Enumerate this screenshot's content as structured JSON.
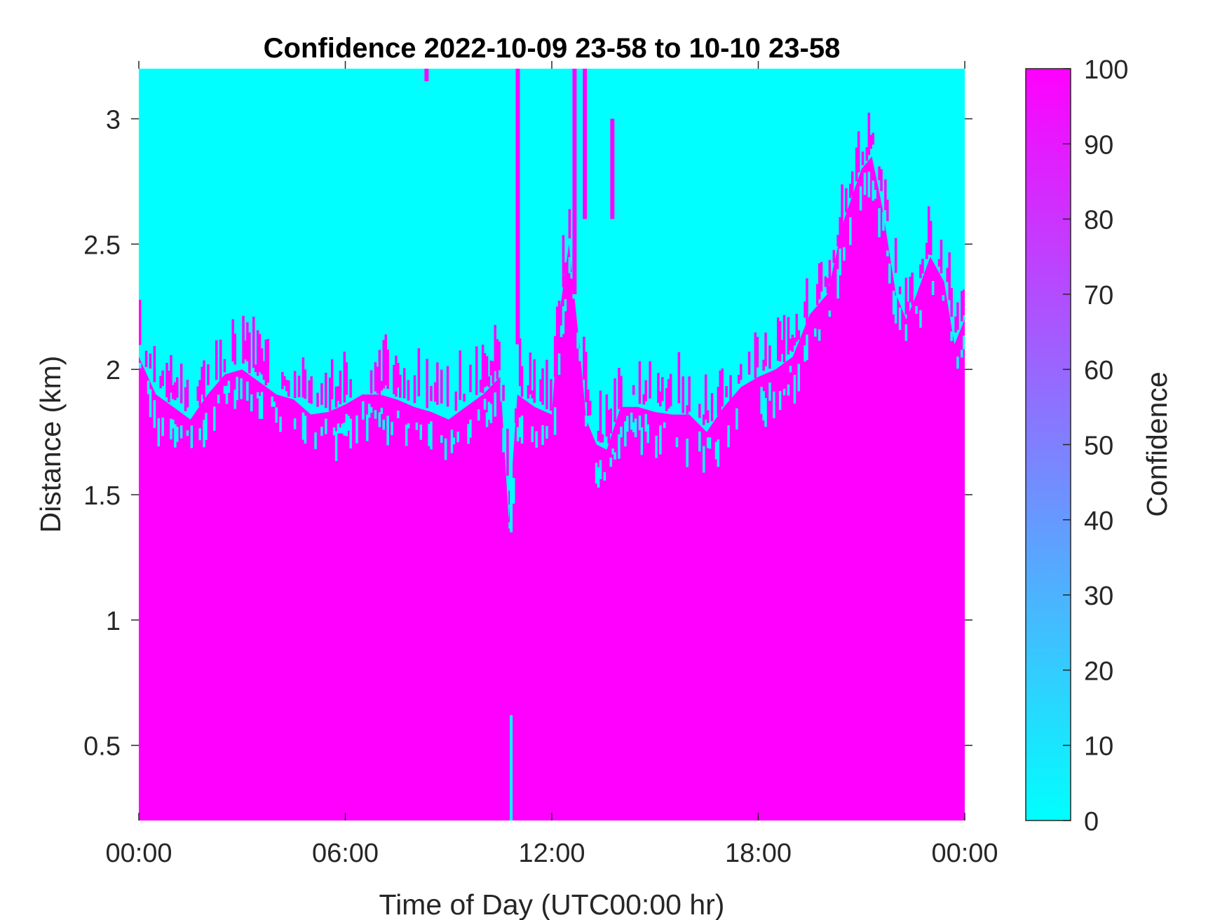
{
  "chart_data": {
    "type": "heatmap",
    "title": "Confidence 2022-10-09 23-58 to 10-10 23-58",
    "xlabel": "Time of Day (UTC00:00 hr)",
    "ylabel": "Distance (km)",
    "x_unit": "hours",
    "xlim": [
      0,
      24
    ],
    "ylim": [
      0.2,
      3.2
    ],
    "x_ticks": [
      {
        "value": 0,
        "label": "00:00"
      },
      {
        "value": 6,
        "label": "06:00"
      },
      {
        "value": 12,
        "label": "12:00"
      },
      {
        "value": 18,
        "label": "18:00"
      },
      {
        "value": 24,
        "label": "00:00"
      }
    ],
    "y_ticks": [
      {
        "value": 0.5,
        "label": "0.5"
      },
      {
        "value": 1,
        "label": "1"
      },
      {
        "value": 1.5,
        "label": "1.5"
      },
      {
        "value": 2,
        "label": "2"
      },
      {
        "value": 2.5,
        "label": "2.5"
      },
      {
        "value": 3,
        "label": "3"
      }
    ],
    "colorbar": {
      "label": "Confidence",
      "range": [
        0,
        100
      ],
      "ticks": [
        {
          "value": 0,
          "label": "0"
        },
        {
          "value": 10,
          "label": "10"
        },
        {
          "value": 20,
          "label": "20"
        },
        {
          "value": 30,
          "label": "30"
        },
        {
          "value": 40,
          "label": "40"
        },
        {
          "value": 50,
          "label": "50"
        },
        {
          "value": 60,
          "label": "60"
        },
        {
          "value": 70,
          "label": "70"
        },
        {
          "value": 80,
          "label": "80"
        },
        {
          "value": 90,
          "label": "90"
        },
        {
          "value": 100,
          "label": "100"
        }
      ],
      "colormap": [
        "#00ffff",
        "#ff00ff"
      ]
    },
    "high_confidence_top_km": [
      [
        0.0,
        2.05
      ],
      [
        0.5,
        1.9
      ],
      [
        1.0,
        1.85
      ],
      [
        1.5,
        1.8
      ],
      [
        2.0,
        1.9
      ],
      [
        2.5,
        1.98
      ],
      [
        3.0,
        2.0
      ],
      [
        3.5,
        1.95
      ],
      [
        4.0,
        1.9
      ],
      [
        4.5,
        1.88
      ],
      [
        5.0,
        1.82
      ],
      [
        5.5,
        1.83
      ],
      [
        6.0,
        1.86
      ],
      [
        6.5,
        1.9
      ],
      [
        7.0,
        1.9
      ],
      [
        7.5,
        1.88
      ],
      [
        8.0,
        1.85
      ],
      [
        8.5,
        1.83
      ],
      [
        9.0,
        1.8
      ],
      [
        9.5,
        1.85
      ],
      [
        10.0,
        1.9
      ],
      [
        10.5,
        1.97
      ],
      [
        10.75,
        1.4
      ],
      [
        11.0,
        1.9
      ],
      [
        11.5,
        1.85
      ],
      [
        12.0,
        1.82
      ],
      [
        12.2,
        2.2
      ],
      [
        12.5,
        2.5
      ],
      [
        12.8,
        2.1
      ],
      [
        13.0,
        1.8
      ],
      [
        13.3,
        1.7
      ],
      [
        13.6,
        1.68
      ],
      [
        14.0,
        1.85
      ],
      [
        14.5,
        1.85
      ],
      [
        15.0,
        1.83
      ],
      [
        15.5,
        1.82
      ],
      [
        16.0,
        1.82
      ],
      [
        16.5,
        1.75
      ],
      [
        17.0,
        1.85
      ],
      [
        17.5,
        1.93
      ],
      [
        18.0,
        1.97
      ],
      [
        18.5,
        2.0
      ],
      [
        19.0,
        2.05
      ],
      [
        19.5,
        2.22
      ],
      [
        20.0,
        2.3
      ],
      [
        20.5,
        2.6
      ],
      [
        21.0,
        2.8
      ],
      [
        21.3,
        2.85
      ],
      [
        21.6,
        2.65
      ],
      [
        22.0,
        2.3
      ],
      [
        22.3,
        2.2
      ],
      [
        22.6,
        2.3
      ],
      [
        23.0,
        2.45
      ],
      [
        23.4,
        2.35
      ],
      [
        23.7,
        2.1
      ],
      [
        24.0,
        2.2
      ]
    ]
  }
}
